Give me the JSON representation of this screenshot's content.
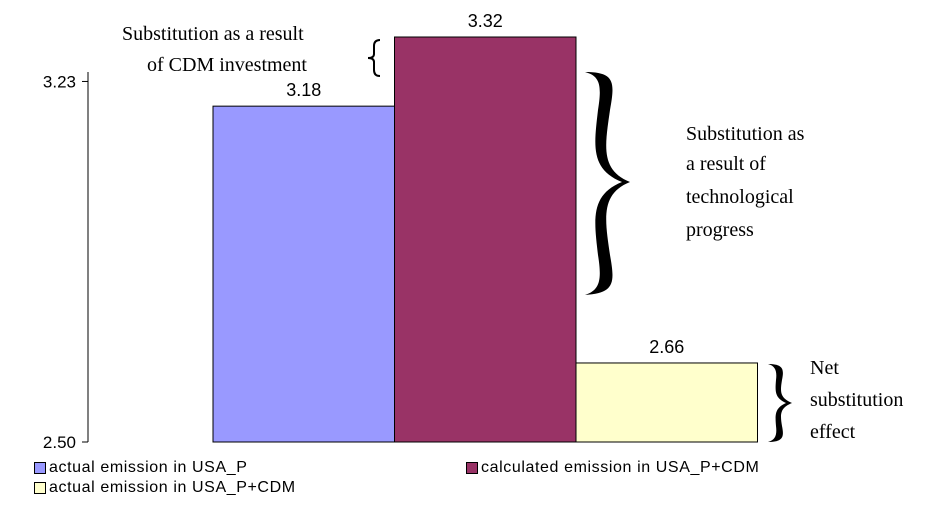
{
  "chart_data": {
    "type": "bar",
    "categories": [
      "actual emission in USA_P",
      "calculated emission in USA_P+CDM",
      "actual emission in USA_P+CDM"
    ],
    "values": [
      3.18,
      3.32,
      2.66
    ],
    "data_labels": [
      "3.18",
      "3.32",
      "2.66"
    ],
    "colors": [
      "#9999ff",
      "#993366",
      "#ffffcc"
    ],
    "ylim": [
      2.5,
      3.32
    ],
    "y_ticks": [
      2.5,
      3.23
    ],
    "y_tick_labels": [
      "2.50",
      "3.23"
    ],
    "grid": false,
    "legend": {
      "position": "bottom",
      "entries": [
        {
          "label": "actual emission in USA_P",
          "color": "#9999ff"
        },
        {
          "label": "calculated emission in USA_P+CDM",
          "color": "#993366"
        },
        {
          "label": "actual emission in USA_P+CDM",
          "color": "#ffffcc"
        }
      ]
    },
    "annotations": {
      "cdm_investment": [
        "Substitution as a result",
        "of CDM investment"
      ],
      "technological_progress": [
        "Substitution as",
        "a result of",
        "technological",
        "progress"
      ],
      "net_effect": [
        "Net",
        "substitution",
        "effect"
      ]
    }
  }
}
